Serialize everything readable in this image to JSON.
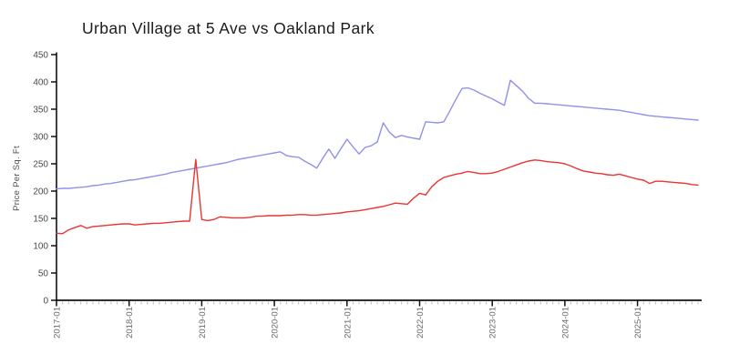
{
  "chart_data": {
    "type": "line",
    "title": "Urban Village at 5 Ave vs Oakland Park",
    "ylabel": "Price Per Sq. Ft",
    "xlabel": "",
    "x_unit": "month",
    "x_range": [
      "2017-01",
      "2025-11"
    ],
    "x_tick_labels": [
      "2017-01",
      "2018-01",
      "2019-01",
      "2020-01",
      "2021-01",
      "2022-01",
      "2023-01",
      "2024-01",
      "2025-01"
    ],
    "x_minor_tick_every": "1 month",
    "y_ticks": [
      0,
      50,
      100,
      150,
      200,
      250,
      300,
      350,
      400,
      450
    ],
    "ylim": [
      0,
      450
    ],
    "grid": false,
    "legend": "none",
    "series": [
      {
        "name": "Urban Village at 5 Ave",
        "color": "#9191ea",
        "values": [
          204,
          205,
          205,
          206,
          207,
          208,
          210,
          211,
          213,
          214,
          216,
          218,
          220,
          221,
          223,
          225,
          227,
          229,
          231,
          234,
          236,
          238,
          240,
          242,
          244,
          246,
          248,
          250,
          252,
          255,
          258,
          260,
          262,
          264,
          266,
          268,
          270,
          272,
          265,
          263,
          262,
          255,
          249,
          242,
          260,
          277,
          260,
          278,
          295,
          281,
          268,
          280,
          283,
          290,
          325,
          308,
          298,
          302,
          299,
          297,
          295,
          327,
          326,
          325,
          327,
          347,
          368,
          388,
          389,
          385,
          379,
          374,
          369,
          363,
          357,
          403,
          393,
          383,
          370,
          361,
          361,
          360,
          359,
          358,
          357,
          356,
          355,
          354,
          353,
          352,
          351,
          350,
          349,
          348,
          346,
          344,
          342,
          340,
          338,
          337,
          336,
          335,
          334,
          333,
          332,
          331,
          330
        ]
      },
      {
        "name": "Oakland Park",
        "color": "#ee3333",
        "values": [
          123,
          122,
          129,
          133,
          137,
          132,
          135,
          136,
          137,
          138,
          139,
          140,
          140,
          138,
          139,
          140,
          141,
          141,
          142,
          143,
          144,
          145,
          145,
          258,
          148,
          146,
          148,
          153,
          152,
          151,
          151,
          151,
          152,
          154,
          154,
          155,
          155,
          155,
          156,
          156,
          157,
          157,
          156,
          156,
          157,
          158,
          159,
          160,
          162,
          163,
          164,
          166,
          168,
          170,
          172,
          175,
          178,
          177,
          176,
          187,
          196,
          193,
          208,
          218,
          225,
          228,
          231,
          233,
          236,
          234,
          232,
          232,
          233,
          236,
          240,
          244,
          248,
          252,
          255,
          257,
          256,
          254,
          253,
          252,
          250,
          246,
          241,
          237,
          235,
          233,
          232,
          230,
          229,
          231,
          228,
          225,
          222,
          220,
          214,
          218,
          218,
          217,
          216,
          215,
          214,
          212,
          211
        ]
      }
    ]
  },
  "colors": {
    "background": "#ffffff",
    "axis": "#111111",
    "major_tick": "#111111",
    "minor_tick": "#c4c4c4",
    "y_tick_label": "#4a4a4a",
    "x_tick_label": "#6a6a6a",
    "title": "#1b1b1b"
  }
}
